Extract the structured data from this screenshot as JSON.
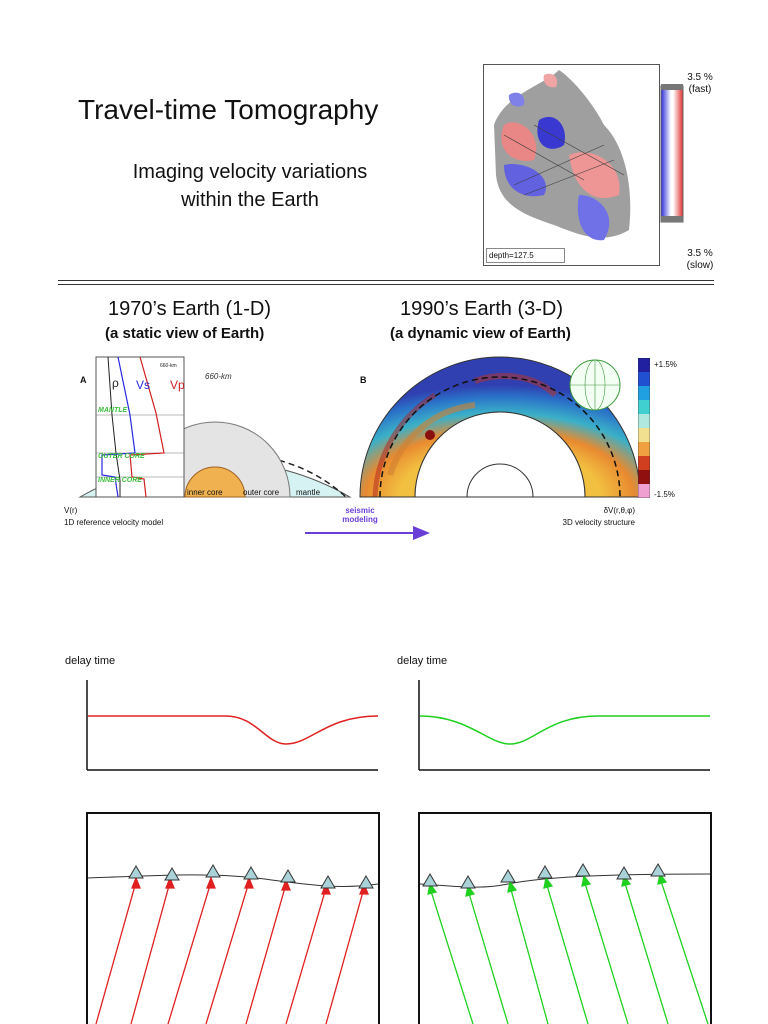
{
  "header": {
    "title": "Travel-time Tomography",
    "subtitle_line1": "Imaging velocity variations",
    "subtitle_line2": "within the Earth"
  },
  "tomography_map": {
    "depth_label": "depth=127.5",
    "scale_top_value": "3.5 %",
    "scale_top_word": "(fast)",
    "scale_bottom_value": "3.5 %",
    "scale_bottom_word": "(slow)",
    "colors": {
      "fast": "#3a3ad8",
      "slow": "#e04040",
      "grey": "#8a8a8a"
    }
  },
  "earth_1d": {
    "heading": "1970’s Earth (1-D)",
    "subheading": "(a static view of Earth)",
    "panel_letter": "A",
    "label_660": "660-km",
    "label_660_small": "660-km",
    "rho": "ρ",
    "vs": "Vs",
    "vp": "Vp",
    "mantle_tag": "MANTLE",
    "outer_core_tag": "OUTER CORE",
    "inner_core_tag": "INNER CORE",
    "inner_core_label": "inner core",
    "outer_core_label": "outer core",
    "mantle_label": "mantle",
    "caption_symbol": "V(r)",
    "caption": "1D reference velocity model"
  },
  "earth_3d": {
    "heading": "1990’s Earth (3-D)",
    "subheading": "(a dynamic view of Earth)",
    "panel_letter": "B",
    "scale_top": "+1.5%",
    "scale_bottom": "-1.5%",
    "caption_symbol": "δV(r,θ,φ)",
    "caption": "3D velocity structure"
  },
  "modeling_arrow": {
    "line1": "seismic",
    "line2": "modeling",
    "color": "#6a3fd8"
  },
  "delay_plots": {
    "left_label": "delay time",
    "right_label": "delay time",
    "left_color": "#e02020",
    "right_color": "#20d020",
    "station_fill": "#a9d3d8"
  }
}
